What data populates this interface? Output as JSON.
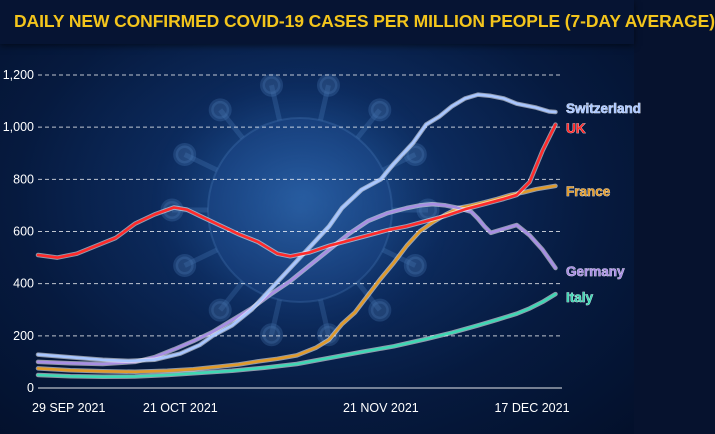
{
  "title": "DAILY NEW CONFIRMED COVID-19 CASES PER MILLION PEOPLE (7-DAY AVERAGE)",
  "colors": {
    "switzerland": "#a9c6ff",
    "uk": "#ff2a2a",
    "france": "#e09a2a",
    "germany": "#a88ee3",
    "italy": "#3fd8b4",
    "title": "#f3c51c",
    "axis_text": "#ffffff",
    "grid": "#ffffff"
  },
  "chart_data": {
    "type": "line",
    "title": "DAILY NEW CONFIRMED COVID-19 CASES PER MILLION PEOPLE (7-DAY AVERAGE)",
    "xlabel": "",
    "ylabel": "",
    "x_ticks": [
      "29 SEP  2021",
      "21 OCT 2021",
      "21 NOV 2021",
      "17 DEC 2021"
    ],
    "x_tick_days": [
      0,
      22,
      53,
      79
    ],
    "x_range_days": [
      0,
      81
    ],
    "y_ticks": [
      "0",
      "200",
      "400",
      "600",
      "800",
      "1,000",
      "1,200"
    ],
    "ylim": [
      0,
      1200
    ],
    "grid": "horizontal dashed",
    "legend": "labels at line ends",
    "series": [
      {
        "name": "Switzerland",
        "points": [
          [
            0,
            128
          ],
          [
            5,
            118
          ],
          [
            10,
            108
          ],
          [
            14,
            104
          ],
          [
            18,
            108
          ],
          [
            22,
            132
          ],
          [
            25,
            165
          ],
          [
            27,
            200
          ],
          [
            30,
            240
          ],
          [
            33,
            300
          ],
          [
            36,
            380
          ],
          [
            39,
            460
          ],
          [
            42,
            540
          ],
          [
            45,
            620
          ],
          [
            47,
            690
          ],
          [
            50,
            760
          ],
          [
            53,
            800
          ],
          [
            55,
            860
          ],
          [
            58,
            940
          ],
          [
            60,
            1010
          ],
          [
            62,
            1040
          ],
          [
            64,
            1080
          ],
          [
            66,
            1110
          ],
          [
            68,
            1125
          ],
          [
            70,
            1120
          ],
          [
            72,
            1110
          ],
          [
            74,
            1090
          ],
          [
            77,
            1075
          ],
          [
            79,
            1060
          ],
          [
            80,
            1058
          ]
        ]
      },
      {
        "name": "UK",
        "points": [
          [
            0,
            510
          ],
          [
            3,
            500
          ],
          [
            6,
            515
          ],
          [
            9,
            545
          ],
          [
            12,
            575
          ],
          [
            15,
            630
          ],
          [
            18,
            665
          ],
          [
            21,
            692
          ],
          [
            23,
            684
          ],
          [
            25,
            660
          ],
          [
            28,
            625
          ],
          [
            31,
            590
          ],
          [
            34,
            560
          ],
          [
            37,
            515
          ],
          [
            39,
            505
          ],
          [
            42,
            520
          ],
          [
            45,
            545
          ],
          [
            48,
            565
          ],
          [
            51,
            585
          ],
          [
            54,
            605
          ],
          [
            57,
            620
          ],
          [
            60,
            640
          ],
          [
            63,
            660
          ],
          [
            66,
            685
          ],
          [
            69,
            705
          ],
          [
            72,
            725
          ],
          [
            74,
            740
          ],
          [
            76,
            790
          ],
          [
            78,
            910
          ],
          [
            80,
            1010
          ]
        ]
      },
      {
        "name": "France",
        "points": [
          [
            0,
            75
          ],
          [
            5,
            68
          ],
          [
            10,
            64
          ],
          [
            15,
            62
          ],
          [
            20,
            66
          ],
          [
            24,
            72
          ],
          [
            28,
            82
          ],
          [
            31,
            90
          ],
          [
            34,
            102
          ],
          [
            37,
            112
          ],
          [
            40,
            125
          ],
          [
            43,
            155
          ],
          [
            45,
            185
          ],
          [
            47,
            245
          ],
          [
            49,
            290
          ],
          [
            51,
            355
          ],
          [
            53,
            420
          ],
          [
            55,
            480
          ],
          [
            57,
            545
          ],
          [
            59,
            600
          ],
          [
            61,
            635
          ],
          [
            63,
            665
          ],
          [
            65,
            690
          ],
          [
            67,
            700
          ],
          [
            69,
            712
          ],
          [
            71,
            725
          ],
          [
            73,
            740
          ],
          [
            75,
            750
          ],
          [
            77,
            762
          ],
          [
            80,
            775
          ]
        ]
      },
      {
        "name": "Germany",
        "points": [
          [
            0,
            100
          ],
          [
            5,
            95
          ],
          [
            10,
            92
          ],
          [
            15,
            100
          ],
          [
            18,
            118
          ],
          [
            21,
            148
          ],
          [
            24,
            180
          ],
          [
            27,
            215
          ],
          [
            30,
            260
          ],
          [
            33,
            305
          ],
          [
            36,
            360
          ],
          [
            39,
            410
          ],
          [
            42,
            470
          ],
          [
            45,
            530
          ],
          [
            48,
            590
          ],
          [
            51,
            640
          ],
          [
            54,
            670
          ],
          [
            57,
            690
          ],
          [
            59,
            700
          ],
          [
            61,
            705
          ],
          [
            63,
            700
          ],
          [
            65,
            690
          ],
          [
            67,
            675
          ],
          [
            68,
            650
          ],
          [
            69,
            620
          ],
          [
            70,
            595
          ],
          [
            72,
            610
          ],
          [
            74,
            625
          ],
          [
            76,
            585
          ],
          [
            78,
            530
          ],
          [
            80,
            460
          ]
        ]
      },
      {
        "name": "Italy",
        "points": [
          [
            0,
            50
          ],
          [
            5,
            45
          ],
          [
            10,
            43
          ],
          [
            15,
            44
          ],
          [
            20,
            50
          ],
          [
            25,
            58
          ],
          [
            30,
            66
          ],
          [
            35,
            78
          ],
          [
            40,
            92
          ],
          [
            45,
            115
          ],
          [
            50,
            138
          ],
          [
            55,
            160
          ],
          [
            60,
            188
          ],
          [
            64,
            212
          ],
          [
            68,
            240
          ],
          [
            71,
            262
          ],
          [
            74,
            285
          ],
          [
            76,
            305
          ],
          [
            78,
            330
          ],
          [
            80,
            360
          ]
        ]
      }
    ]
  }
}
